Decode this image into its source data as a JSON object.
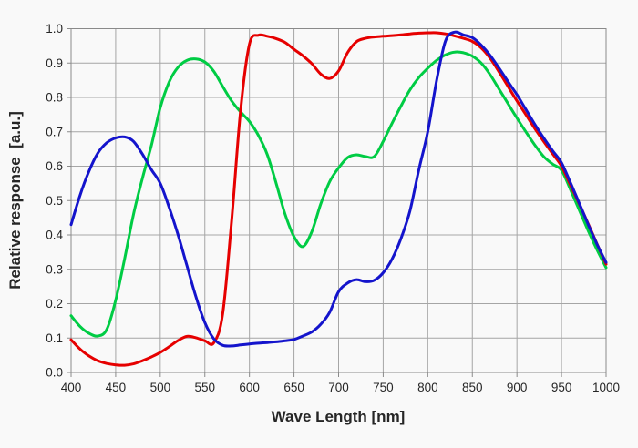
{
  "chart_data": {
    "type": "line",
    "title": "",
    "xlabel": "Wave Length [nm]",
    "ylabel": "Relative response  [a.u.]",
    "xlim": [
      400,
      1000
    ],
    "ylim": [
      0.0,
      1.0
    ],
    "x_ticks": [
      400,
      450,
      500,
      550,
      600,
      650,
      700,
      750,
      800,
      850,
      900,
      950,
      1000
    ],
    "y_ticks": [
      0.0,
      0.1,
      0.2,
      0.3,
      0.4,
      0.5,
      0.6,
      0.7,
      0.8,
      0.9,
      1.0
    ],
    "y_tick_labels": [
      "0.0",
      "0.1",
      "0.2",
      "0.3",
      "0.4",
      "0.5",
      "0.6",
      "0.7",
      "0.8",
      "0.9",
      "1.0"
    ],
    "grid": true,
    "legend": "none",
    "x": [
      400,
      410,
      420,
      430,
      440,
      450,
      460,
      470,
      480,
      490,
      500,
      510,
      520,
      530,
      540,
      550,
      560,
      570,
      580,
      590,
      600,
      610,
      620,
      630,
      640,
      650,
      660,
      670,
      680,
      690,
      700,
      710,
      720,
      730,
      740,
      750,
      760,
      770,
      780,
      790,
      800,
      810,
      820,
      830,
      840,
      850,
      860,
      870,
      880,
      890,
      900,
      910,
      920,
      930,
      940,
      950,
      960,
      970,
      980,
      990,
      1000
    ],
    "series": [
      {
        "name": "green-channel",
        "color": "#00cc44",
        "values": [
          0.165,
          0.134,
          0.114,
          0.106,
          0.125,
          0.21,
          0.33,
          0.46,
          0.565,
          0.66,
          0.77,
          0.845,
          0.888,
          0.908,
          0.912,
          0.903,
          0.876,
          0.832,
          0.79,
          0.758,
          0.73,
          0.69,
          0.634,
          0.55,
          0.46,
          0.395,
          0.366,
          0.41,
          0.49,
          0.555,
          0.595,
          0.625,
          0.633,
          0.628,
          0.628,
          0.672,
          0.725,
          0.775,
          0.822,
          0.858,
          0.885,
          0.908,
          0.924,
          0.932,
          0.93,
          0.92,
          0.9,
          0.866,
          0.824,
          0.782,
          0.74,
          0.7,
          0.662,
          0.628,
          0.606,
          0.588,
          0.532,
          0.472,
          0.412,
          0.356,
          0.305
        ]
      },
      {
        "name": "red-channel",
        "color": "#e60000",
        "values": [
          0.095,
          0.068,
          0.048,
          0.034,
          0.026,
          0.022,
          0.021,
          0.025,
          0.034,
          0.045,
          0.058,
          0.075,
          0.093,
          0.105,
          0.101,
          0.092,
          0.086,
          0.17,
          0.44,
          0.76,
          0.955,
          0.981,
          0.978,
          0.971,
          0.96,
          0.94,
          0.921,
          0.898,
          0.868,
          0.855,
          0.877,
          0.93,
          0.962,
          0.972,
          0.976,
          0.978,
          0.98,
          0.982,
          0.985,
          0.987,
          0.988,
          0.988,
          0.985,
          0.979,
          0.972,
          0.963,
          0.944,
          0.914,
          0.874,
          0.832,
          0.79,
          0.75,
          0.71,
          0.672,
          0.636,
          0.6,
          0.545,
          0.49,
          0.432,
          0.373,
          0.315
        ]
      },
      {
        "name": "blue-channel",
        "color": "#1414cc",
        "values": [
          0.43,
          0.515,
          0.585,
          0.638,
          0.668,
          0.682,
          0.685,
          0.672,
          0.635,
          0.59,
          0.55,
          0.48,
          0.4,
          0.31,
          0.22,
          0.145,
          0.098,
          0.079,
          0.077,
          0.08,
          0.083,
          0.085,
          0.087,
          0.089,
          0.092,
          0.096,
          0.106,
          0.118,
          0.14,
          0.175,
          0.235,
          0.26,
          0.27,
          0.264,
          0.268,
          0.29,
          0.33,
          0.39,
          0.47,
          0.59,
          0.7,
          0.85,
          0.965,
          0.99,
          0.982,
          0.974,
          0.952,
          0.922,
          0.885,
          0.846,
          0.808,
          0.765,
          0.722,
          0.682,
          0.645,
          0.61,
          0.552,
          0.492,
          0.43,
          0.372,
          0.32
        ]
      }
    ]
  },
  "styles": {
    "background": "#f9f9f9",
    "grid_color": "#a6a6a6",
    "frame_color": "#8a8a8a",
    "tick_color": "#8a8a8a",
    "text_color": "#262626"
  }
}
